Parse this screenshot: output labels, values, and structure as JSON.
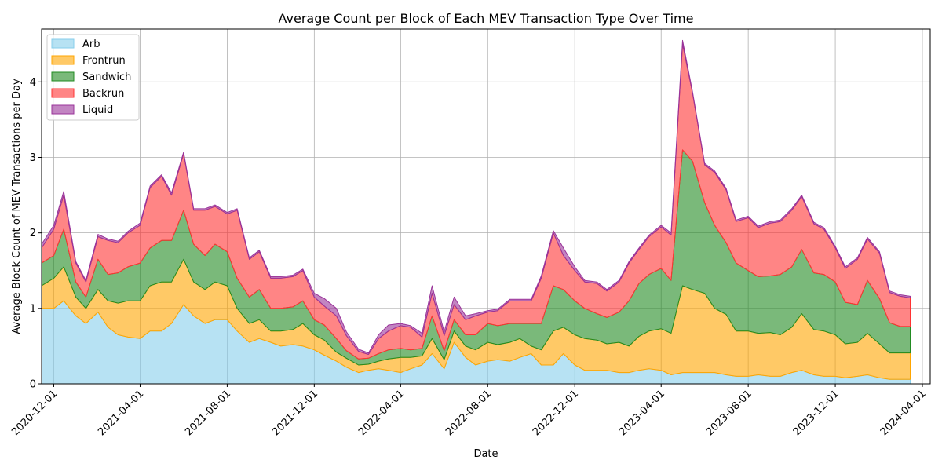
{
  "chart_data": {
    "type": "area",
    "stacked": true,
    "title": "Average Count per Block of Each MEV Transaction Type Over Time",
    "xlabel": "Date",
    "ylabel": "Average Block Count of MEV Transactions per Day",
    "xlim": [
      "2020-11-14",
      "2024-04-12"
    ],
    "ylim": [
      0,
      4.7
    ],
    "x_ticks": [
      "2020-12-01",
      "2021-04-01",
      "2021-08-01",
      "2021-12-01",
      "2022-04-01",
      "2022-08-01",
      "2022-12-01",
      "2023-04-01",
      "2023-08-01",
      "2023-12-01",
      "2024-04-01"
    ],
    "y_ticks": [
      0,
      1,
      2,
      3,
      4
    ],
    "grid": true,
    "legend_position": "top-left",
    "x": [
      "2020-11-14",
      "2020-12-01",
      "2020-12-15",
      "2021-01-01",
      "2021-01-15",
      "2021-02-01",
      "2021-02-15",
      "2021-03-01",
      "2021-03-15",
      "2021-04-01",
      "2021-04-15",
      "2021-05-01",
      "2021-05-15",
      "2021-06-01",
      "2021-06-15",
      "2021-07-01",
      "2021-07-15",
      "2021-08-01",
      "2021-08-15",
      "2021-09-01",
      "2021-09-15",
      "2021-10-01",
      "2021-10-15",
      "2021-11-01",
      "2021-11-15",
      "2021-12-01",
      "2021-12-15",
      "2022-01-01",
      "2022-01-15",
      "2022-02-01",
      "2022-02-15",
      "2022-03-01",
      "2022-03-15",
      "2022-04-01",
      "2022-04-15",
      "2022-05-01",
      "2022-05-15",
      "2022-06-01",
      "2022-06-15",
      "2022-07-01",
      "2022-07-15",
      "2022-08-01",
      "2022-08-15",
      "2022-09-01",
      "2022-09-15",
      "2022-10-01",
      "2022-10-15",
      "2022-11-01",
      "2022-11-15",
      "2022-12-01",
      "2022-12-15",
      "2023-01-01",
      "2023-01-15",
      "2023-02-01",
      "2023-02-15",
      "2023-03-01",
      "2023-03-15",
      "2023-04-01",
      "2023-04-15",
      "2023-05-01",
      "2023-05-15",
      "2023-06-01",
      "2023-06-15",
      "2023-07-01",
      "2023-07-15",
      "2023-08-01",
      "2023-08-15",
      "2023-09-01",
      "2023-09-15",
      "2023-10-01",
      "2023-10-15",
      "2023-11-01",
      "2023-11-15",
      "2023-12-01",
      "2023-12-15",
      "2024-01-01",
      "2024-01-15",
      "2024-02-01",
      "2024-02-15",
      "2024-03-01",
      "2024-03-15"
    ],
    "series": [
      {
        "name": "Arb",
        "color": "#87ceeb",
        "values": [
          1.0,
          1.0,
          1.1,
          0.9,
          0.8,
          0.95,
          0.75,
          0.65,
          0.62,
          0.6,
          0.7,
          0.7,
          0.8,
          1.05,
          0.9,
          0.8,
          0.85,
          0.85,
          0.7,
          0.55,
          0.6,
          0.55,
          0.5,
          0.52,
          0.5,
          0.45,
          0.38,
          0.3,
          0.22,
          0.15,
          0.18,
          0.2,
          0.18,
          0.15,
          0.2,
          0.25,
          0.4,
          0.2,
          0.55,
          0.35,
          0.25,
          0.3,
          0.32,
          0.3,
          0.35,
          0.4,
          0.25,
          0.25,
          0.4,
          0.25,
          0.18,
          0.18,
          0.18,
          0.15,
          0.15,
          0.18,
          0.2,
          0.18,
          0.12,
          0.15,
          0.15,
          0.15,
          0.15,
          0.12,
          0.1,
          0.1,
          0.12,
          0.1,
          0.1,
          0.15,
          0.18,
          0.12,
          0.1,
          0.1,
          0.08,
          0.1,
          0.12,
          0.08,
          0.06,
          0.06,
          0.06
        ]
      },
      {
        "name": "Frontrun",
        "color": "#ffa500",
        "values": [
          0.3,
          0.4,
          0.45,
          0.25,
          0.2,
          0.3,
          0.35,
          0.42,
          0.48,
          0.5,
          0.6,
          0.65,
          0.55,
          0.6,
          0.45,
          0.45,
          0.5,
          0.45,
          0.3,
          0.25,
          0.25,
          0.15,
          0.2,
          0.2,
          0.3,
          0.2,
          0.2,
          0.12,
          0.12,
          0.1,
          0.08,
          0.1,
          0.15,
          0.2,
          0.15,
          0.12,
          0.2,
          0.12,
          0.15,
          0.15,
          0.2,
          0.25,
          0.2,
          0.25,
          0.25,
          0.1,
          0.2,
          0.45,
          0.35,
          0.4,
          0.42,
          0.4,
          0.35,
          0.4,
          0.35,
          0.45,
          0.5,
          0.55,
          0.55,
          1.15,
          1.1,
          1.05,
          0.85,
          0.8,
          0.6,
          0.6,
          0.55,
          0.58,
          0.55,
          0.6,
          0.75,
          0.6,
          0.6,
          0.55,
          0.45,
          0.45,
          0.55,
          0.45,
          0.35,
          0.35,
          0.35
        ]
      },
      {
        "name": "Sandwich",
        "color": "#228b22",
        "values": [
          0.3,
          0.3,
          0.5,
          0.2,
          0.15,
          0.4,
          0.35,
          0.4,
          0.45,
          0.5,
          0.5,
          0.55,
          0.55,
          0.65,
          0.5,
          0.45,
          0.5,
          0.45,
          0.4,
          0.35,
          0.4,
          0.3,
          0.3,
          0.3,
          0.3,
          0.2,
          0.2,
          0.18,
          0.1,
          0.08,
          0.08,
          0.1,
          0.12,
          0.12,
          0.1,
          0.1,
          0.3,
          0.12,
          0.15,
          0.15,
          0.2,
          0.25,
          0.25,
          0.25,
          0.2,
          0.3,
          0.35,
          0.6,
          0.5,
          0.45,
          0.4,
          0.35,
          0.35,
          0.4,
          0.6,
          0.7,
          0.75,
          0.8,
          0.7,
          1.8,
          1.7,
          1.2,
          1.1,
          0.95,
          0.9,
          0.8,
          0.75,
          0.75,
          0.8,
          0.8,
          0.85,
          0.75,
          0.75,
          0.7,
          0.55,
          0.5,
          0.7,
          0.6,
          0.4,
          0.35,
          0.35
        ]
      },
      {
        "name": "Backrun",
        "color": "#ff3333",
        "values": [
          0.2,
          0.35,
          0.45,
          0.25,
          0.2,
          0.3,
          0.45,
          0.4,
          0.45,
          0.5,
          0.8,
          0.85,
          0.6,
          0.75,
          0.45,
          0.6,
          0.5,
          0.5,
          0.9,
          0.5,
          0.5,
          0.4,
          0.4,
          0.4,
          0.4,
          0.3,
          0.25,
          0.3,
          0.2,
          0.1,
          0.05,
          0.2,
          0.25,
          0.3,
          0.3,
          0.15,
          0.3,
          0.2,
          0.2,
          0.2,
          0.25,
          0.15,
          0.2,
          0.3,
          0.3,
          0.3,
          0.6,
          0.7,
          0.45,
          0.4,
          0.35,
          0.4,
          0.35,
          0.4,
          0.5,
          0.45,
          0.5,
          0.55,
          0.6,
          1.4,
          0.9,
          0.5,
          0.7,
          0.7,
          0.55,
          0.7,
          0.65,
          0.7,
          0.7,
          0.75,
          0.7,
          0.65,
          0.6,
          0.45,
          0.45,
          0.6,
          0.55,
          0.6,
          0.4,
          0.4,
          0.38
        ]
      },
      {
        "name": "Liquid",
        "color": "#993399",
        "values": [
          0.05,
          0.05,
          0.05,
          0.02,
          0.02,
          0.03,
          0.02,
          0.02,
          0.02,
          0.03,
          0.02,
          0.02,
          0.03,
          0.02,
          0.02,
          0.02,
          0.02,
          0.02,
          0.02,
          0.02,
          0.02,
          0.02,
          0.02,
          0.02,
          0.02,
          0.05,
          0.1,
          0.1,
          0.05,
          0.03,
          0.02,
          0.05,
          0.08,
          0.03,
          0.02,
          0.05,
          0.1,
          0.05,
          0.1,
          0.05,
          0.03,
          0.02,
          0.02,
          0.02,
          0.02,
          0.02,
          0.03,
          0.03,
          0.1,
          0.05,
          0.02,
          0.02,
          0.02,
          0.02,
          0.02,
          0.02,
          0.02,
          0.02,
          0.03,
          0.05,
          0.02,
          0.02,
          0.02,
          0.02,
          0.02,
          0.02,
          0.02,
          0.02,
          0.02,
          0.02,
          0.02,
          0.02,
          0.02,
          0.02,
          0.02,
          0.02,
          0.02,
          0.02,
          0.02,
          0.02,
          0.02
        ]
      }
    ]
  }
}
